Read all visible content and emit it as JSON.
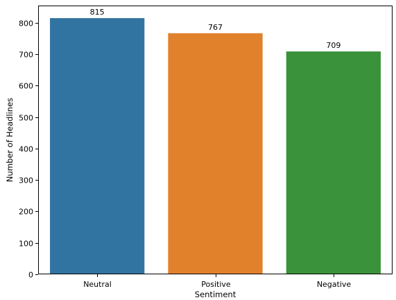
{
  "chart_data": {
    "type": "bar",
    "title": "",
    "xlabel": "Sentiment",
    "ylabel": "Number of Headlines",
    "categories": [
      "Neutral",
      "Positive",
      "Negative"
    ],
    "values": [
      815,
      767,
      709
    ],
    "data_labels": [
      "815",
      "767",
      "709"
    ],
    "colors": [
      "#3274a1",
      "#e1812c",
      "#3a923a"
    ],
    "ylim": [
      0,
      855
    ],
    "yticks": [
      0,
      100,
      200,
      300,
      400,
      500,
      600,
      700,
      800
    ],
    "grid": false,
    "legend": "none"
  }
}
